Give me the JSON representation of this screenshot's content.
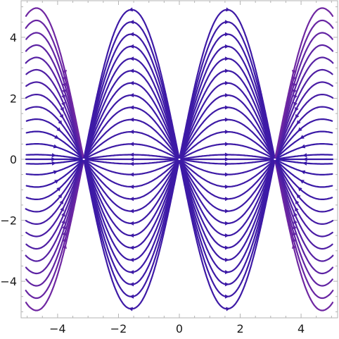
{
  "chart_data": {
    "type": "streamplot",
    "title": "",
    "xlabel": "",
    "ylabel": "",
    "xlim": [
      -5.2,
      5.2
    ],
    "ylim": [
      -5.2,
      5.2
    ],
    "xticks": [
      {
        "value": -4,
        "label": "−4"
      },
      {
        "value": -2,
        "label": "−2"
      },
      {
        "value": 0,
        "label": "0"
      },
      {
        "value": 2,
        "label": "2"
      },
      {
        "value": 4,
        "label": "4"
      }
    ],
    "yticks": [
      {
        "value": 4,
        "label": "4"
      },
      {
        "value": 2,
        "label": "2"
      },
      {
        "value": 0,
        "label": "0"
      },
      {
        "value": -2,
        "label": "−2"
      },
      {
        "value": -4,
        "label": "−4"
      }
    ],
    "minor_tick_step": 0.5,
    "grid": false,
    "critical_points": [
      {
        "x": -3.14159,
        "y": 0,
        "kind": "source"
      },
      {
        "x": 0,
        "y": 0,
        "kind": "sink"
      },
      {
        "x": 3.14159,
        "y": 0,
        "kind": "source"
      }
    ],
    "seed_x_values": [
      -4.85,
      -1.57,
      1.57,
      4.85
    ],
    "seed_y_values": [
      -4.9,
      -4.5,
      -4.1,
      -3.7,
      -3.3,
      -2.9,
      -2.5,
      -2.1,
      -1.7,
      -1.3,
      -0.9,
      -0.5,
      -0.15,
      0.15,
      0.5,
      0.9,
      1.3,
      1.7,
      2.1,
      2.5,
      2.9,
      3.3,
      3.7,
      4.1,
      4.5,
      4.9
    ],
    "color_scale": {
      "low": "#1a10a8",
      "mid": "#8c2fa0",
      "high": "#f59a18",
      "speed_range": [
        0,
        6.5
      ]
    }
  }
}
